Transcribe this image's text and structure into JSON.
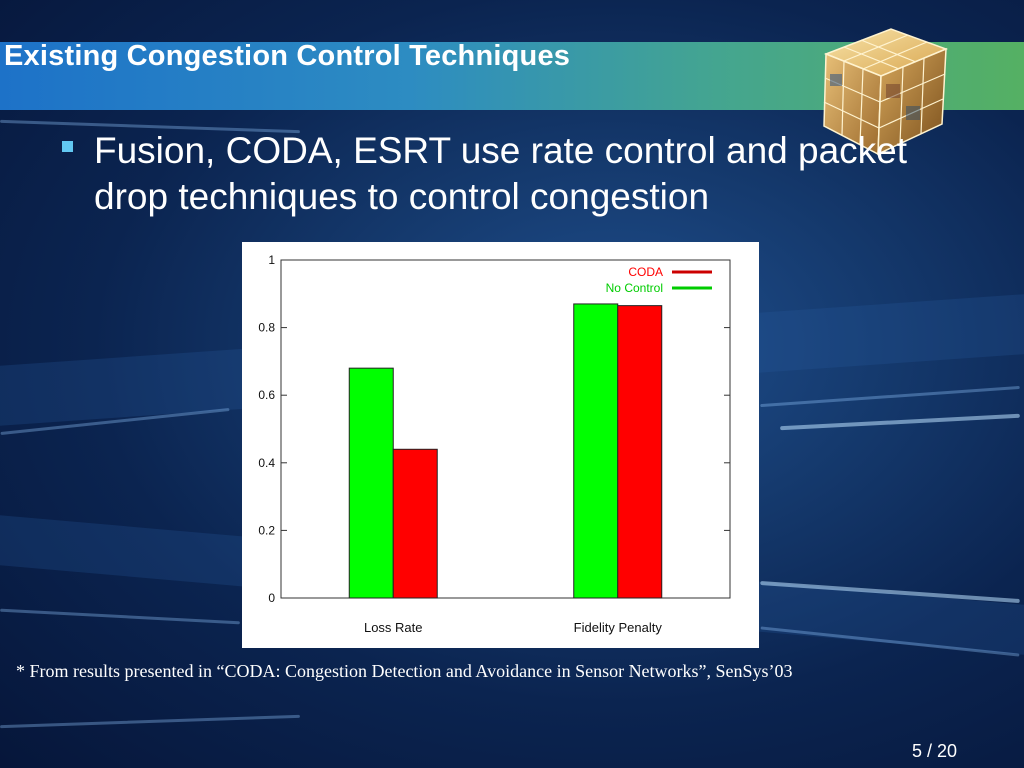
{
  "slide": {
    "title": "Existing Congestion Control Techniques",
    "bullet": "Fusion, CODA, ESRT use rate control and packet drop techniques to control congestion",
    "footnote": "* From results presented in “CODA: Congestion Detection and Avoidance in Sensor Networks”, SenSys’03",
    "page_number": "5 / 20"
  },
  "colors": {
    "title_gradient_start": "#1d72c8",
    "title_gradient_end": "#55b063",
    "bullet_marker": "#62c8f2",
    "coda": "#ff0000",
    "no_control": "#00ff00"
  },
  "chart_data": {
    "type": "bar",
    "categories": [
      "Loss Rate",
      "Fidelity Penalty"
    ],
    "series": [
      {
        "name": "No Control",
        "color": "#00ff00",
        "legend_line_color": "#00cc00",
        "values": [
          0.68,
          0.87
        ]
      },
      {
        "name": "CODA",
        "color": "#ff0000",
        "legend_line_color": "#cc0000",
        "values": [
          0.44,
          0.865
        ]
      }
    ],
    "legend_order": [
      "CODA",
      "No Control"
    ],
    "legend_text_colors": {
      "CODA": "#ff0000",
      "No Control": "#00cc00"
    },
    "yticks": [
      0,
      0.2,
      0.4,
      0.6,
      0.8,
      1
    ],
    "ytick_labels": [
      "0",
      "0.2",
      "0.4",
      "0.6",
      "0.8",
      "1"
    ],
    "ylim": [
      0,
      1
    ],
    "legend_position": "top-right",
    "grid": false
  }
}
